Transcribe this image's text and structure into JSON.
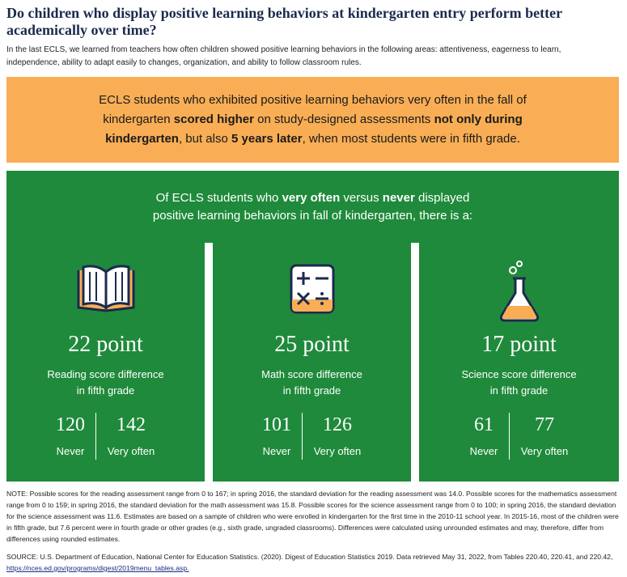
{
  "header": {
    "title": "Do children who display positive learning behaviors at kindergarten entry perform better academically over time?",
    "intro": "In the last ECLS, we learned from teachers how often children showed positive learning behaviors in the following areas: attentiveness, eagerness to learn, independence, ability to adapt easily to changes, organization, and ability to follow classroom rules."
  },
  "callout": {
    "segments": [
      "ECLS students who exhibited positive learning behaviors very often in the fall of kindergarten ",
      "scored higher",
      " on study-designed assessments ",
      "not only during kindergarten",
      ", but also ",
      "5 years later",
      ", when most students were in fifth grade."
    ]
  },
  "panel": {
    "segments": [
      "Of ECLS students who ",
      "very often",
      " versus ",
      "never",
      " displayed positive learning behaviors in fall of kindergarten, there is a:"
    ]
  },
  "cards": [
    {
      "stat": "22 point",
      "label": [
        "Reading score difference",
        "in fifth grade"
      ],
      "never": {
        "value": 120,
        "label": "Never"
      },
      "very_often": {
        "value": 142,
        "label": "Very often"
      }
    },
    {
      "stat": "25 point",
      "label": [
        "Math score difference",
        "in fifth grade"
      ],
      "never": {
        "value": 101,
        "label": "Never"
      },
      "very_often": {
        "value": 126,
        "label": "Very often"
      }
    },
    {
      "stat": "17 point",
      "label": [
        "Science score difference",
        "in fifth grade"
      ],
      "never": {
        "value": 61,
        "label": "Never"
      },
      "very_often": {
        "value": 77,
        "label": "Very often"
      }
    }
  ],
  "footer": {
    "note": "NOTE: Possible scores for the reading assessment range from 0 to 167; in spring 2016, the standard deviation for the reading assessment was 14.0. Possible scores for the mathematics assessment range from 0 to 159; in spring 2016, the standard deviation for the math assessment was 15.8. Possible scores for the science assessment range from 0 to 100; in spring 2016, the standard deviation for the science assessment was 11.6. Estimates are based on a sample of children who were enrolled in kindergarten for the first time in the 2010-11 school year. In 2015-16, most of the children were in fifth grade, but 7.6 percent were in fourth grade or other grades (e.g., sixth grade, ungraded classrooms). Differences were calculated using unrounded estimates and may, therefore, differ from differences using rounded estimates.",
    "source": "SOURCE: U.S. Department of Education, National Center for Education Statistics. (2020). Digest of Education Statistics 2019. Data retrieved May 31, 2022, from Tables 220.40, 220.41, and 220.42, ",
    "link": "https://nces.ed.gov/programs/digest/2019menu_tables.asp."
  }
}
